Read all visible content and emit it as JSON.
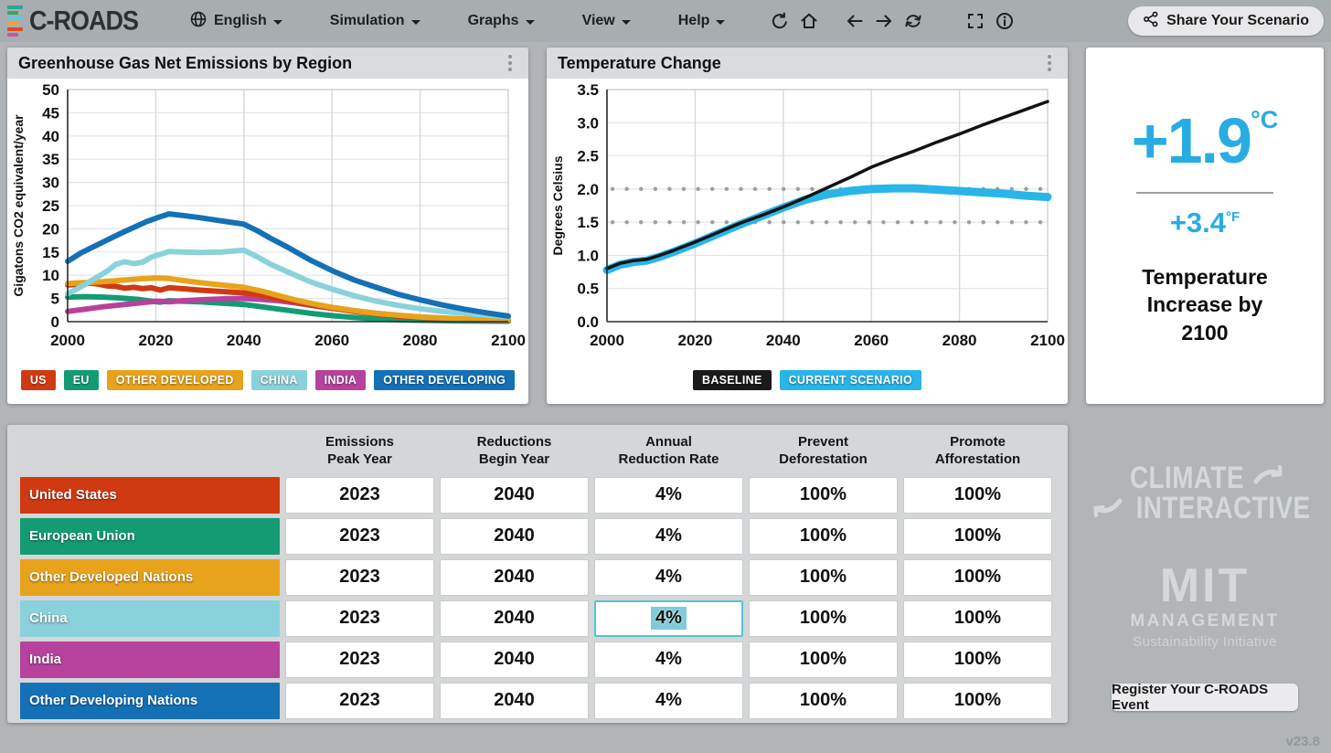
{
  "nav": {
    "logo_text": "C-ROADS",
    "logo_bar_colors": [
      "#2aa49e",
      "#3aa84f",
      "#66c6e9",
      "#efa43a",
      "#e04a2a",
      "#bf58a2"
    ],
    "menus": [
      {
        "label": "English",
        "icon": "globe-icon"
      },
      {
        "label": "Simulation"
      },
      {
        "label": "Graphs"
      },
      {
        "label": "View"
      },
      {
        "label": "Help"
      }
    ],
    "icon_buttons": [
      "undo",
      "home",
      "back",
      "forward",
      "reload",
      "fullscreen",
      "info"
    ],
    "share_label": "Share Your Scenario"
  },
  "panels": {
    "emissions": {
      "title": "Greenhouse Gas Net Emissions by Region",
      "chart_data": {
        "type": "line",
        "ylabel": "Gigatons CO2 equivalent/year",
        "xlabel": "",
        "xlim": [
          2000,
          2100
        ],
        "xticks": [
          2000,
          2020,
          2040,
          2060,
          2080,
          2100
        ],
        "ylim": [
          0,
          50
        ],
        "yticks": [
          0,
          5,
          10,
          15,
          20,
          25,
          30,
          35,
          40,
          45,
          50
        ],
        "ydec": 0,
        "grid": true,
        "legend_position": "bottom",
        "series": [
          {
            "name": "EU",
            "color": "#139c74",
            "width": 6,
            "x": [
              2000,
              2004,
              2008,
              2012,
              2016,
              2019,
              2021,
              2023,
              2026,
              2030,
              2035,
              2040,
              2044,
              2048,
              2052,
              2056,
              2060,
              2065,
              2070,
              2075,
              2080,
              2090,
              2100
            ],
            "y": [
              5.3,
              5.4,
              5.3,
              5.1,
              4.8,
              4.4,
              4.2,
              4.5,
              4.4,
              4.3,
              4.0,
              3.7,
              3.2,
              2.7,
              2.2,
              1.7,
              1.3,
              0.9,
              0.6,
              0.4,
              0.3,
              0.15,
              0.1
            ]
          },
          {
            "name": "INDIA",
            "color": "#b6429d",
            "width": 6,
            "x": [
              2000,
              2004,
              2008,
              2012,
              2016,
              2020,
              2023,
              2026,
              2030,
              2035,
              2040,
              2044,
              2048,
              2052,
              2056,
              2060,
              2065,
              2070,
              2075,
              2080,
              2085,
              2090,
              2095,
              2100
            ],
            "y": [
              2.2,
              2.7,
              3.2,
              3.6,
              4.0,
              4.4,
              4.3,
              4.5,
              4.7,
              4.9,
              5.0,
              4.8,
              4.5,
              4.0,
              3.4,
              2.9,
              2.3,
              1.8,
              1.3,
              1.0,
              0.7,
              0.5,
              0.4,
              0.3
            ]
          },
          {
            "name": "US",
            "color": "#cf3a13",
            "width": 6,
            "x": [
              2000,
              2003,
              2005,
              2007,
              2009,
              2011,
              2013,
              2015,
              2017,
              2019,
              2021,
              2023,
              2026,
              2030,
              2035,
              2040,
              2044,
              2048,
              2052,
              2056,
              2060,
              2065,
              2070,
              2075,
              2080,
              2085,
              2090,
              2095,
              2100
            ],
            "y": [
              7.9,
              8.1,
              8.3,
              8.1,
              7.7,
              7.6,
              7.2,
              7.4,
              7.1,
              7.3,
              6.8,
              7.3,
              7.1,
              6.8,
              6.5,
              6.2,
              5.7,
              4.9,
              4.2,
              3.5,
              2.9,
              2.2,
              1.7,
              1.2,
              0.9,
              0.7,
              0.5,
              0.4,
              0.3
            ]
          },
          {
            "name": "OTHER DEVELOPED",
            "color": "#e7a31b",
            "width": 6,
            "x": [
              2000,
              2004,
              2008,
              2012,
              2016,
              2020,
              2023,
              2026,
              2030,
              2035,
              2040,
              2044,
              2048,
              2052,
              2056,
              2060,
              2065,
              2070,
              2075,
              2080,
              2085,
              2090,
              2095,
              2100
            ],
            "y": [
              8.2,
              8.4,
              8.6,
              8.9,
              9.2,
              9.4,
              9.3,
              8.9,
              8.4,
              7.9,
              7.4,
              6.6,
              5.6,
              4.6,
              3.8,
              3.1,
              2.4,
              1.8,
              1.4,
              1.0,
              0.8,
              0.6,
              0.5,
              0.4
            ]
          },
          {
            "name": "CHINA",
            "color": "#8ad2db",
            "width": 6,
            "x": [
              2000,
              2003,
              2006,
              2009,
              2011,
              2013,
              2015,
              2017,
              2019,
              2021,
              2023,
              2026,
              2030,
              2035,
              2040,
              2043,
              2046,
              2050,
              2055,
              2060,
              2065,
              2070,
              2075,
              2080,
              2085,
              2090,
              2095,
              2100
            ],
            "y": [
              6,
              7.5,
              9.2,
              10.9,
              12.4,
              12.9,
              12.5,
              12.8,
              13.9,
              14.5,
              15.1,
              15.0,
              14.9,
              15.0,
              15.4,
              14.0,
              12.4,
              10.7,
              8.6,
              7.0,
              5.6,
              4.4,
              3.5,
              2.8,
              2.2,
              1.8,
              1.4,
              1.1
            ]
          },
          {
            "name": "OTHER DEVELOPING",
            "color": "#1471b6",
            "width": 6,
            "x": [
              2000,
              2003,
              2006,
              2009,
              2012,
              2015,
              2018,
              2021,
              2023,
              2026,
              2030,
              2035,
              2040,
              2043,
              2046,
              2050,
              2055,
              2060,
              2065,
              2070,
              2075,
              2080,
              2085,
              2090,
              2095,
              2100
            ],
            "y": [
              13,
              14.8,
              16.2,
              17.6,
              19,
              20.3,
              21.6,
              22.6,
              23.2,
              22.9,
              22.4,
              21.7,
              21,
              19.6,
              18,
              16,
              13.3,
              11,
              9,
              7.4,
              5.9,
              4.7,
              3.6,
              2.7,
              1.9,
              1.2
            ]
          }
        ],
        "legend": [
          {
            "label": "US",
            "color": "#cf3a13"
          },
          {
            "label": "EU",
            "color": "#139c74"
          },
          {
            "label": "OTHER DEVELOPED",
            "color": "#e7a31b"
          },
          {
            "label": "CHINA",
            "color": "#8ad2db"
          },
          {
            "label": "INDIA",
            "color": "#b6429d"
          },
          {
            "label": "OTHER DEVELOPING",
            "color": "#1471b6"
          }
        ]
      }
    },
    "temperature": {
      "title": "Temperature Change",
      "chart_data": {
        "type": "line",
        "ylabel": "Degrees Celsius",
        "xlabel": "",
        "xlim": [
          2000,
          2100
        ],
        "xticks": [
          2000,
          2020,
          2040,
          2060,
          2080,
          2100
        ],
        "ylim": [
          0,
          3.5
        ],
        "yticks": [
          0,
          0.5,
          1.0,
          1.5,
          2.0,
          2.5,
          3.0,
          3.5
        ],
        "ydec": 1,
        "grid": true,
        "legend_position": "bottom",
        "ref_lines": [
          {
            "y": 2.0,
            "color": "#9aa0a3",
            "style": "dotted"
          },
          {
            "y": 1.5,
            "color": "#9aa0a3",
            "style": "dotted"
          }
        ],
        "series": [
          {
            "name": "CURRENT SCENARIO",
            "color": "#29b5e8",
            "width": 9,
            "x": [
              2000,
              2003,
              2006,
              2009,
              2012,
              2015,
              2020,
              2025,
              2030,
              2035,
              2040,
              2045,
              2050,
              2055,
              2060,
              2065,
              2070,
              2075,
              2080,
              2085,
              2090,
              2095,
              2100
            ],
            "y": [
              0.78,
              0.86,
              0.9,
              0.92,
              0.98,
              1.05,
              1.18,
              1.32,
              1.46,
              1.59,
              1.72,
              1.84,
              1.92,
              1.97,
              2.0,
              2.01,
              2.01,
              1.99,
              1.97,
              1.95,
              1.93,
              1.9,
              1.88
            ]
          },
          {
            "name": "BASELINE",
            "color": "#121314",
            "width": 3.5,
            "x": [
              2000,
              2003,
              2006,
              2009,
              2012,
              2015,
              2020,
              2025,
              2030,
              2035,
              2040,
              2045,
              2050,
              2055,
              2060,
              2065,
              2070,
              2075,
              2080,
              2085,
              2090,
              2095,
              2100
            ],
            "y": [
              0.8,
              0.88,
              0.92,
              0.94,
              1.0,
              1.07,
              1.2,
              1.34,
              1.48,
              1.6,
              1.73,
              1.87,
              2.02,
              2.17,
              2.33,
              2.46,
              2.58,
              2.71,
              2.83,
              2.96,
              3.08,
              3.2,
              3.32
            ]
          }
        ],
        "legend": [
          {
            "label": "BASELINE",
            "color": "#1a1a1a"
          },
          {
            "label": "CURRENT SCENARIO",
            "color": "#29b5e8"
          }
        ]
      }
    },
    "summary": {
      "celsius": "+1.9",
      "celsius_unit": "°C",
      "fahrenheit": "+3.4",
      "fahrenheit_unit": "°F",
      "caption": "Temperature Increase by 2100"
    }
  },
  "table": {
    "columns": [
      {
        "line1": "Emissions",
        "line2": "Peak Year"
      },
      {
        "line1": "Reductions",
        "line2": "Begin Year"
      },
      {
        "line1": "Annual",
        "line2": "Reduction Rate"
      },
      {
        "line1": "Prevent",
        "line2": "Deforestation"
      },
      {
        "line1": "Promote",
        "line2": "Afforestation"
      }
    ],
    "rows": [
      {
        "region": "United States",
        "color": "#cf3a13",
        "values": [
          "2023",
          "2040",
          "4%",
          "100%",
          "100%"
        ]
      },
      {
        "region": "European Union",
        "color": "#139c74",
        "values": [
          "2023",
          "2040",
          "4%",
          "100%",
          "100%"
        ]
      },
      {
        "region": "Other Developed Nations",
        "color": "#e7a31b",
        "values": [
          "2023",
          "2040",
          "4%",
          "100%",
          "100%"
        ]
      },
      {
        "region": "China",
        "color": "#8ad2db",
        "values": [
          "2023",
          "2040",
          "4%",
          "100%",
          "100%"
        ]
      },
      {
        "region": "India",
        "color": "#b6429d",
        "values": [
          "2023",
          "2040",
          "4%",
          "100%",
          "100%"
        ]
      },
      {
        "region": "Other Developing Nations",
        "color": "#1471b6",
        "values": [
          "2023",
          "2040",
          "4%",
          "100%",
          "100%"
        ]
      }
    ],
    "focused": {
      "row": 3,
      "col": 2
    }
  },
  "branding": {
    "climate_line1": "CLIMATE",
    "climate_line2": "INTERACTIVE",
    "mit_name": "MIT",
    "mit_division": "MANAGEMENT",
    "mit_sub": "Sustainability Initiative",
    "register_label": "Register Your C-ROADS Event"
  },
  "version": "v23.8",
  "colors": {
    "accent_cyan": "#29ace2",
    "page_background": "#b1b5b8",
    "panel_header": "#d9dbdd",
    "focus_border": "#54c5d0"
  }
}
